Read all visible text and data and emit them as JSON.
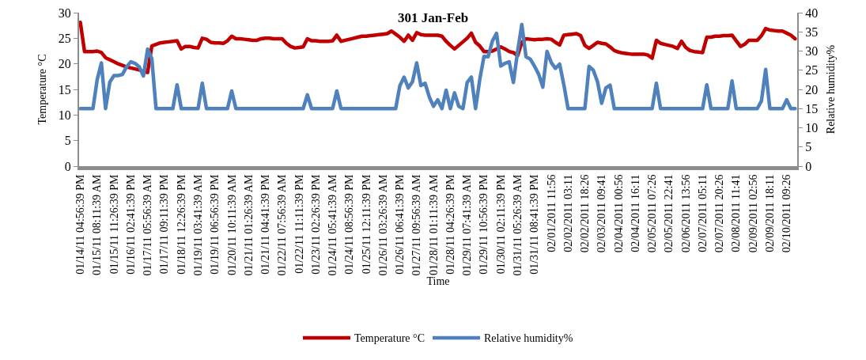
{
  "chart_data": {
    "type": "line",
    "title": "301 Jan-Feb",
    "xlabel": "Time",
    "ylabel": "Temperature °C",
    "y2label": "Relative humidity%",
    "categories": [
      "01/14/11 04:56:39 PM",
      null,
      null,
      null,
      "01/15/11 08:11:39 AM",
      null,
      null,
      null,
      "01/15/11 11:26:39 PM",
      null,
      null,
      null,
      "01/16/11 02:41:39 PM",
      null,
      null,
      null,
      "01/17/11 05:56:39 AM",
      null,
      null,
      null,
      "01/17/11 09:11:39 PM",
      null,
      null,
      null,
      "01/18/11 12:26:39 PM",
      null,
      null,
      null,
      "01/19/11 03:41:39 AM",
      null,
      null,
      null,
      "01/19/11 06:56:39 PM",
      null,
      null,
      null,
      "01/20/11 10:11:39 AM",
      null,
      null,
      null,
      "01/21/11 01:26:39 AM",
      null,
      null,
      null,
      "01/21/11 04:41:39 PM",
      null,
      null,
      null,
      "01/22/11 07:56:39 AM",
      null,
      null,
      null,
      "01/22/11 11:11:39 PM",
      null,
      null,
      null,
      "01/23/11 02:26:39 PM",
      null,
      null,
      null,
      "01/24/11 05:41:39 AM",
      null,
      null,
      null,
      "01/24/11 08:56:39 PM",
      null,
      null,
      null,
      "01/25/11 12:11:39 PM",
      null,
      null,
      null,
      "01/26/11 03:26:39 AM",
      null,
      null,
      null,
      "01/26/11 06:41:39 PM",
      null,
      null,
      null,
      "01/27/11 09:56:39 AM",
      null,
      null,
      null,
      "01/28/11 01:11:39 AM",
      null,
      null,
      null,
      "01/28/11 04:26:39 PM",
      null,
      null,
      null,
      "01/29/11 07:41:39 AM",
      null,
      null,
      null,
      "01/29/11 10:56:39 PM",
      null,
      null,
      null,
      "01/30/11 02:11:39 PM",
      null,
      null,
      null,
      "01/31/11 05:26:39 AM",
      null,
      null,
      null,
      "01/31/11 08:41:39 PM",
      null,
      null,
      null,
      "02/01/2011 11:56",
      null,
      null,
      null,
      "02/02/2011 03:11",
      null,
      null,
      null,
      "02/02/2011 18:26",
      null,
      null,
      null,
      "02/03/2011 09:41",
      null,
      null,
      null,
      "02/04/2011 00:56",
      null,
      null,
      null,
      "02/04/2011 16:11",
      null,
      null,
      null,
      "02/05/2011 07:26",
      null,
      null,
      null,
      "02/05/2011 22:41",
      null,
      null,
      null,
      "02/06/2011 13:56",
      null,
      null,
      null,
      "02/07/2011 05:11",
      null,
      null,
      null,
      "02/07/2011 20:26",
      null,
      null,
      null,
      "02/08/2011 11:41",
      null,
      null,
      null,
      "02/09/2011 02:56",
      null,
      null,
      null,
      "02/09/2011 18:11",
      null,
      null,
      null,
      "02/10/2011 09:26",
      null,
      null
    ],
    "series": [
      {
        "name": "Temperature °C",
        "color": "#c00000",
        "values": [
          28.1,
          22.4,
          22.4,
          22.4,
          22.5,
          22.2,
          21.2,
          20.8,
          20.4,
          20.0,
          19.7,
          19.4,
          19.2,
          19.0,
          18.8,
          18.5,
          18.3,
          23.5,
          23.8,
          24.1,
          24.2,
          24.3,
          24.4,
          24.5,
          22.9,
          23.4,
          23.4,
          23.2,
          23.1,
          25.0,
          24.8,
          24.2,
          24.1,
          24.1,
          24.0,
          24.5,
          25.4,
          24.9,
          24.9,
          24.8,
          24.7,
          24.6,
          24.6,
          24.9,
          25.0,
          25.0,
          24.9,
          24.9,
          24.9,
          24.0,
          23.4,
          23.1,
          23.2,
          23.3,
          24.9,
          24.5,
          24.5,
          24.4,
          24.4,
          24.4,
          24.5,
          25.6,
          24.4,
          24.6,
          24.8,
          25.0,
          25.2,
          25.4,
          25.4,
          25.5,
          25.6,
          25.7,
          25.8,
          25.9,
          26.4,
          25.8,
          25.2,
          24.4,
          25.6,
          24.6,
          26.1,
          25.7,
          25.6,
          25.6,
          25.6,
          25.6,
          25.4,
          24.4,
          23.6,
          22.9,
          23.6,
          24.3,
          25.0,
          26.0,
          24.2,
          23.5,
          22.4,
          22.4,
          22.5,
          22.9,
          23.3,
          22.9,
          22.4,
          22.2,
          21.6,
          24.2,
          24.9,
          24.8,
          24.7,
          24.8,
          24.8,
          24.9,
          24.8,
          24.2,
          23.7,
          25.6,
          25.7,
          25.8,
          25.9,
          25.5,
          23.6,
          23.0,
          23.6,
          24.2,
          24.0,
          23.9,
          23.3,
          22.6,
          22.3,
          22.1,
          22.0,
          21.9,
          21.9,
          21.9,
          21.9,
          21.7,
          21.1,
          24.6,
          24.0,
          23.8,
          23.6,
          23.4,
          23.0,
          24.4,
          23.2,
          22.6,
          22.4,
          22.3,
          22.2,
          25.2,
          25.2,
          25.4,
          25.4,
          25.5,
          25.5,
          25.6,
          24.5,
          23.4,
          23.8,
          24.6,
          24.6,
          24.6,
          25.5,
          26.9,
          26.6,
          26.5,
          26.4,
          26.4,
          26.0,
          25.6,
          24.9
        ]
      },
      {
        "name": "Relative humidity%",
        "color": "#4f81bd",
        "axis": "y2",
        "values": [
          15,
          15,
          15,
          15,
          22.5,
          26.9,
          15,
          21.9,
          23.6,
          23.6,
          23.9,
          25.9,
          27.2,
          26.8,
          25.9,
          23.5,
          30.5,
          28,
          15,
          15,
          15,
          15,
          15,
          21.2,
          15,
          15,
          15,
          15,
          15,
          21.6,
          15,
          15,
          15,
          15,
          15,
          15,
          19.6,
          15,
          15,
          15,
          15,
          15,
          15,
          15,
          15,
          15,
          15,
          15,
          15,
          15,
          15,
          15,
          15,
          15,
          18.6,
          15,
          15,
          15,
          15,
          15,
          15,
          19.6,
          15,
          15,
          15,
          15,
          15,
          15,
          15,
          15,
          15,
          15,
          15,
          15,
          15,
          15,
          21,
          23.2,
          20.4,
          22,
          26.9,
          21,
          21.6,
          18,
          15.6,
          17.3,
          15,
          19.8,
          15,
          19.1,
          15.6,
          15,
          21.8,
          23.2,
          15,
          22.6,
          28.6,
          28.5,
          32.6,
          34.6,
          26.1,
          26.8,
          27.2,
          21.8,
          29.9,
          36.9,
          28.5,
          27.9,
          26.1,
          24,
          20.6,
          29.9,
          27,
          25.5,
          26.6,
          21.2,
          15,
          15,
          15,
          15,
          15,
          26,
          25,
          22,
          16.4,
          20.4,
          21.1,
          15,
          15,
          15,
          15,
          15,
          15,
          15,
          15,
          15,
          15,
          21.6,
          15,
          15,
          15,
          15,
          15,
          15,
          15,
          15,
          15,
          15,
          15,
          21.2,
          15,
          15,
          15,
          15,
          15,
          22.2,
          15,
          15,
          15,
          15,
          15,
          15,
          17,
          25.2,
          15,
          15,
          15,
          15,
          17.3,
          15,
          15
        ]
      }
    ],
    "ylim": [
      0,
      30
    ],
    "yticks": [
      0,
      5,
      10,
      15,
      20,
      25,
      30
    ],
    "y2lim": [
      0,
      40
    ],
    "y2ticks": [
      0,
      5,
      10,
      15,
      20,
      25,
      30,
      35,
      40
    ],
    "grid": false,
    "legend": "bottom",
    "marker": "none",
    "line_style": "solid"
  }
}
